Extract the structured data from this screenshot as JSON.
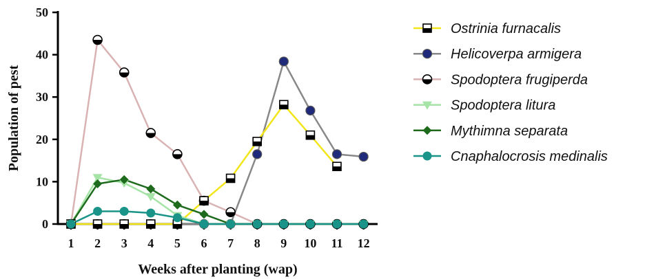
{
  "chart_data": {
    "type": "line",
    "xlabel": "Weeks after planting (wap)",
    "ylabel": "Population of pest",
    "x": [
      1,
      2,
      3,
      4,
      5,
      6,
      7,
      8,
      9,
      10,
      11,
      12
    ],
    "x_ticks": [
      "1",
      "2",
      "3",
      "4",
      "5",
      "6",
      "7",
      "8",
      "9",
      "10",
      "11",
      "12"
    ],
    "ylim": [
      0,
      50
    ],
    "y_ticks": [
      "0",
      "10",
      "20",
      "30",
      "40",
      "50"
    ],
    "grid": false,
    "legend_position": "right",
    "series": [
      {
        "name": "Ostrinia furnacalis",
        "color": "#f2e61a",
        "marker": "square-half",
        "values": [
          0,
          0,
          0,
          0,
          0,
          5.5,
          10.8,
          19.5,
          28.2,
          21,
          13.6,
          null
        ]
      },
      {
        "name": "Helicoverpa armigera",
        "color": "#888888",
        "marker": "circle-navy",
        "values": [
          0,
          0,
          0,
          0,
          0,
          0,
          0,
          16.5,
          38.4,
          26.8,
          16.5,
          15.9
        ]
      },
      {
        "name": "Spodoptera frugiperda",
        "color": "#d9b3b3",
        "marker": "circle-half",
        "values": [
          0,
          43.5,
          35.8,
          21.5,
          16.5,
          5.5,
          2.8,
          0,
          0,
          0,
          0,
          0
        ]
      },
      {
        "name": "Spodoptera litura",
        "color": "#a6e3a6",
        "marker": "triangle-down",
        "values": [
          0,
          11,
          9.7,
          6.5,
          2,
          0,
          0,
          0,
          0,
          0,
          0,
          0
        ]
      },
      {
        "name": "Mythimna separata",
        "color": "#1e6b1e",
        "marker": "diamond",
        "values": [
          0,
          9.5,
          10.5,
          8.3,
          4.5,
          2.3,
          0,
          0,
          0,
          0,
          0,
          0
        ]
      },
      {
        "name": "Cnaphalocrosis medinalis",
        "color": "#1a9488",
        "marker": "circle-filled",
        "values": [
          0,
          3,
          3,
          2.6,
          1.5,
          0,
          0,
          0,
          0,
          0,
          0,
          0
        ]
      }
    ]
  }
}
